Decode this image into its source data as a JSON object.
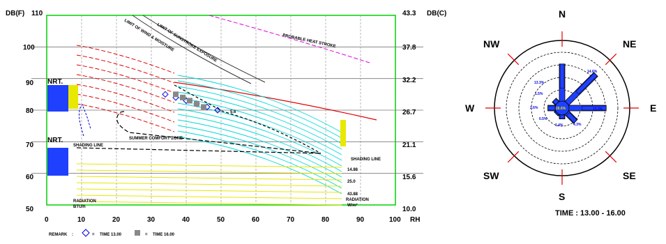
{
  "chart_data": [
    {
      "type": "line",
      "ylabel_left": "DB(F)",
      "ylabel_right": "DB(C)",
      "xlabel": "RH",
      "x_ticks": [
        "0",
        "10",
        "20",
        "30",
        "40",
        "50",
        "60",
        "70",
        "80",
        "90",
        "100"
      ],
      "y_ticks_left": [
        "110",
        "100",
        "90",
        "80",
        "70",
        "60",
        "50"
      ],
      "y_ticks_right": [
        "43.3",
        "37.8",
        "32.2",
        "26.7",
        "21.1",
        "15.6",
        "10.0"
      ],
      "xlim": [
        0,
        100
      ],
      "ylim": [
        50,
        110
      ],
      "grid": true,
      "annotations": {
        "probable_heat": "PROBABLE HEAT STROKE",
        "sunstroke": "LIMIT OF SUNSTROKE EXPOSURE",
        "evaporative": "LIMIT OF USEFULNESS OF EVAPORATIVE COOLING",
        "wind": "LIMIT OF WIND & MOISTURE",
        "summer_comfort": "SUMMER COMFORT ZONE",
        "shading_left": "SHADING LINE",
        "shading_right": "SHADING LINE",
        "nrt_upper": "NRT.",
        "nrt_lower": "NRT.",
        "sr1": "14.88",
        "sr2": "25.0",
        "sr3": "43.88",
        "radiation": "RADIATION",
        "radiation_units": "W/m²",
        "radiation_left": "RADIATION",
        "radiation_left_units": "BTU/h",
        "val_56": "5.6"
      },
      "remark": {
        "label": "REMARK",
        "item1": "TIME 13.00",
        "item2": "TIME 16.00"
      },
      "series": [
        {
          "name": "TIME 13.00",
          "x": [
            34,
            37,
            40,
            43,
            46,
            49
          ],
          "y": [
            85,
            84,
            83,
            82,
            81,
            80
          ]
        },
        {
          "name": "TIME 16.00",
          "x": [
            37,
            39,
            41,
            43,
            45
          ],
          "y": [
            85,
            84,
            83,
            82,
            81
          ]
        }
      ],
      "colors": {
        "heat": "#e000e0",
        "hot": "#e00000",
        "evap": "#00d8d8",
        "radiation": "#e8e800",
        "wind": "#0000e0"
      }
    },
    {
      "type": "wind-rose",
      "directions": [
        "N",
        "NE",
        "E",
        "SE",
        "S",
        "SW",
        "W",
        "NW"
      ],
      "labels": [
        {
          "dir": "N",
          "value": "13.3%"
        },
        {
          "dir": "NE",
          "value": "14.6%"
        },
        {
          "dir": "E",
          "value": "13.3%"
        },
        {
          "dir": "SE",
          "value": "4.3%"
        },
        {
          "dir": "S",
          "value": "1.4%"
        },
        {
          "dir": "SW",
          "value": "0.5%"
        },
        {
          "dir": "W",
          "value": "2.6%"
        },
        {
          "dir": "NW",
          "value": "1.5%"
        }
      ],
      "calm": "26.6%",
      "time_label": "TIME : 13.00 - 16.00"
    }
  ]
}
